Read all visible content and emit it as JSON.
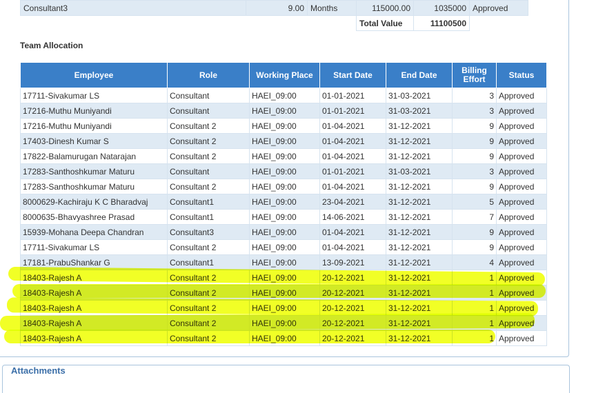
{
  "summary": {
    "row": {
      "resource": "Consultant3",
      "quantity": "9.00",
      "unit": "Months",
      "rate": "115000.00",
      "amount": "1035000",
      "status": "Approved"
    },
    "total_label": "Total Value",
    "total_value": "11100500"
  },
  "team_allocation": {
    "title": "Team Allocation",
    "headers": [
      "Employee",
      "Role",
      "Working Place",
      "Start Date",
      "End Date",
      "Billing Effort",
      "Status"
    ],
    "rows": [
      [
        "17711-Sivakumar LS",
        "Consultant",
        "HAEI_09:00",
        "01-01-2021",
        "31-03-2021",
        "3",
        "Approved"
      ],
      [
        "17216-Muthu Muniyandi",
        "Consultant",
        "HAEI_09:00",
        "01-01-2021",
        "31-03-2021",
        "3",
        "Approved"
      ],
      [
        "17216-Muthu Muniyandi",
        "Consultant 2",
        "HAEI_09:00",
        "01-04-2021",
        "31-12-2021",
        "9",
        "Approved"
      ],
      [
        "17403-Dinesh Kumar S",
        "Consultant 2",
        "HAEI_09:00",
        "01-04-2021",
        "31-12-2021",
        "9",
        "Approved"
      ],
      [
        "17822-Balamurugan Natarajan",
        "Consultant 2",
        "HAEI_09:00",
        "01-04-2021",
        "31-12-2021",
        "9",
        "Approved"
      ],
      [
        "17283-Santhoshkumar Maturu",
        "Consultant",
        "HAEI_09:00",
        "01-01-2021",
        "31-03-2021",
        "3",
        "Approved"
      ],
      [
        "17283-Santhoshkumar Maturu",
        "Consultant 2",
        "HAEI_09:00",
        "01-04-2021",
        "31-12-2021",
        "9",
        "Approved"
      ],
      [
        "8000629-Kachiraju K C Bharadvaj",
        "Consultant1",
        "HAEI_09:00",
        "23-04-2021",
        "31-12-2021",
        "5",
        "Approved"
      ],
      [
        "8000635-Bhavyashree Prasad",
        "Consultant1",
        "HAEI_09:00",
        "14-06-2021",
        "31-12-2021",
        "7",
        "Approved"
      ],
      [
        "15939-Mohana Deepa Chandran",
        "Consultant3",
        "HAEI_09:00",
        "01-04-2021",
        "31-12-2021",
        "9",
        "Approved"
      ],
      [
        "17711-Sivakumar LS",
        "Consultant 2",
        "HAEI_09:00",
        "01-04-2021",
        "31-12-2021",
        "9",
        "Approved"
      ],
      [
        "17181-PrabuShankar G",
        "Consultant1",
        "HAEI_09:00",
        "13-09-2021",
        "31-12-2021",
        "4",
        "Approved"
      ],
      [
        "18403-Rajesh A",
        "Consultant 2",
        "HAEI_09:00",
        "20-12-2021",
        "31-12-2021",
        "1",
        "Approved"
      ],
      [
        "18403-Rajesh A",
        "Consultant 2",
        "HAEI_09:00",
        "20-12-2021",
        "31-12-2021",
        "1",
        "Approved"
      ],
      [
        "18403-Rajesh A",
        "Consultant 2",
        "HAEI_09:00",
        "20-12-2021",
        "31-12-2021",
        "1",
        "Approved"
      ],
      [
        "18403-Rajesh A",
        "Consultant 2",
        "HAEI_09:00",
        "20-12-2021",
        "31-12-2021",
        "1",
        "Approved"
      ],
      [
        "18403-Rajesh A",
        "Consultant 2",
        "HAEI_09:00",
        "20-12-2021",
        "31-12-2021",
        "1",
        "Approved"
      ]
    ]
  },
  "attachments": {
    "legend": "Attachments"
  },
  "colors": {
    "header_bg": "#3a7fc8",
    "alt_row_bg": "#dfeaf4",
    "highlight": "#eeff00"
  }
}
